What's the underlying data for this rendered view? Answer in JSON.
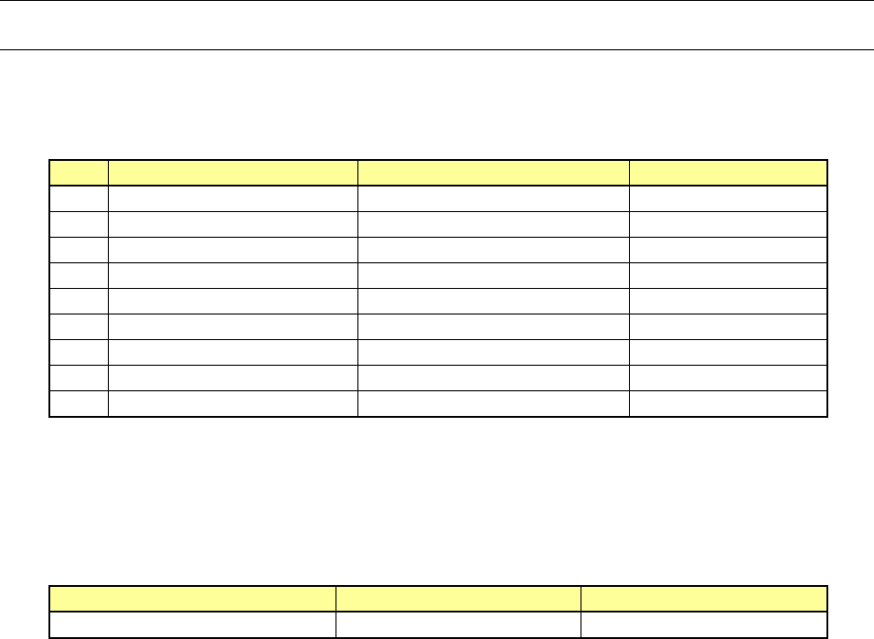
{
  "colors": {
    "header_fill": "#ffff99",
    "border": "#000000"
  },
  "table1": {
    "headers": [
      "",
      "",
      "",
      ""
    ],
    "rows": [
      [
        "",
        "",
        "",
        ""
      ],
      [
        "",
        "",
        "",
        ""
      ],
      [
        "",
        "",
        "",
        ""
      ],
      [
        "",
        "",
        "",
        ""
      ],
      [
        "",
        "",
        "",
        ""
      ],
      [
        "",
        "",
        "",
        ""
      ],
      [
        "",
        "",
        "",
        ""
      ],
      [
        "",
        "",
        "",
        ""
      ],
      [
        "",
        "",
        "",
        ""
      ]
    ]
  },
  "table2": {
    "headers": [
      "",
      "",
      ""
    ],
    "rows": [
      [
        "",
        "",
        ""
      ]
    ]
  }
}
